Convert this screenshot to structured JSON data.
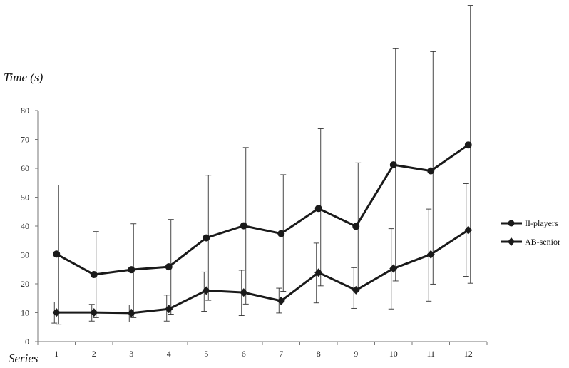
{
  "chart_data": {
    "type": "line",
    "title": "",
    "xlabel": "Series",
    "ylabel": "Time (s)",
    "categories": [
      "1",
      "2",
      "3",
      "4",
      "5",
      "6",
      "7",
      "8",
      "9",
      "10",
      "11",
      "12"
    ],
    "ylim": [
      0,
      80
    ],
    "yticks": [
      0,
      10,
      20,
      30,
      40,
      50,
      60,
      70,
      80
    ],
    "grid": false,
    "legend_position": "right",
    "series": [
      {
        "name": "II-players",
        "marker": "circle",
        "color": "#1a1a1a",
        "values": [
          30.3,
          23.2,
          24.9,
          25.9,
          35.9,
          40.1,
          37.4,
          46.1,
          39.9,
          61.2,
          59.1,
          68.1
        ],
        "error_low": [
          6.0,
          8.3,
          8.3,
          9.5,
          14.3,
          13.0,
          17.4,
          19.3,
          18.4,
          21.0,
          19.9,
          20.2
        ],
        "error_high": [
          54.2,
          38.1,
          40.8,
          42.3,
          57.6,
          67.2,
          57.8,
          73.7,
          61.9,
          101.4,
          100.4,
          116.4
        ]
      },
      {
        "name": "AB-senior",
        "marker": "diamond",
        "color": "#1a1a1a",
        "values": [
          10.1,
          10.1,
          9.9,
          11.3,
          17.7,
          17.0,
          14.1,
          23.9,
          17.8,
          25.3,
          30.2,
          38.6
        ],
        "error_low": [
          6.4,
          7.1,
          6.8,
          7.1,
          10.5,
          9.0,
          9.9,
          13.4,
          11.5,
          11.3,
          14.0,
          22.6
        ],
        "error_high": [
          13.7,
          12.9,
          12.7,
          16.1,
          24.1,
          24.7,
          18.5,
          34.1,
          25.6,
          39.1,
          45.9,
          54.7
        ]
      }
    ]
  }
}
